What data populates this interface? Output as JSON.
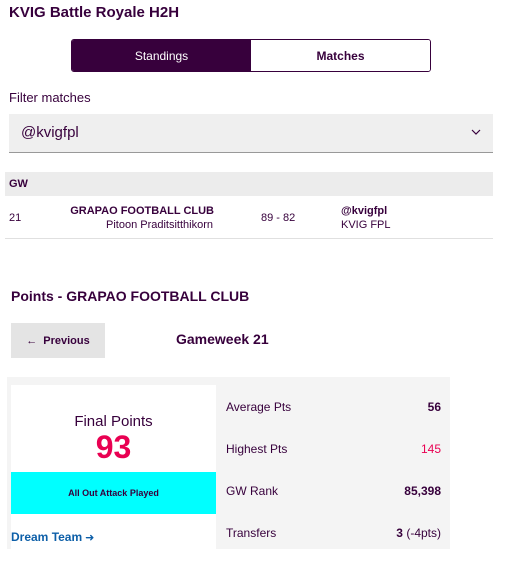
{
  "league": {
    "title": "KVIG Battle Royale H2H"
  },
  "tabs": [
    {
      "label": "Standings"
    },
    {
      "label": "Matches"
    }
  ],
  "filter": {
    "label": "Filter matches",
    "selected": "@kvigfpl"
  },
  "matches": {
    "column_header": "GW",
    "rows": [
      {
        "gw": "21",
        "home_team": "GRAPAO FOOTBALL CLUB",
        "home_manager": "Pitoon Praditsitthikorn",
        "score": "89 - 82",
        "away_team": "@kvigfpl",
        "away_manager": "KVIG FPL"
      }
    ]
  },
  "points": {
    "title": "Points - GRAPAO FOOTBALL CLUB",
    "previous_label": "Previous",
    "gameweek_title": "Gameweek 21",
    "final_label": "Final Points",
    "final_value": "93",
    "chip": "All Out Attack Played",
    "dream_team_label": "Dream Team",
    "stats": [
      {
        "label": "Average Pts",
        "value": "56"
      },
      {
        "label": "Highest Pts",
        "value": "145"
      },
      {
        "label": "GW Rank",
        "value": "85,398"
      },
      {
        "label": "Transfers",
        "value": "3",
        "suffix": "(-4pts)"
      }
    ]
  },
  "colors": {
    "brand_purple": "#37003c",
    "accent_pink": "#e90052",
    "chip_cyan": "#00ffff",
    "link_blue": "#0d5fa8"
  },
  "icons": {
    "select_caret": "chevron-down-icon",
    "previous": "arrow-left-icon",
    "dream_team": "arrow-right-icon"
  }
}
